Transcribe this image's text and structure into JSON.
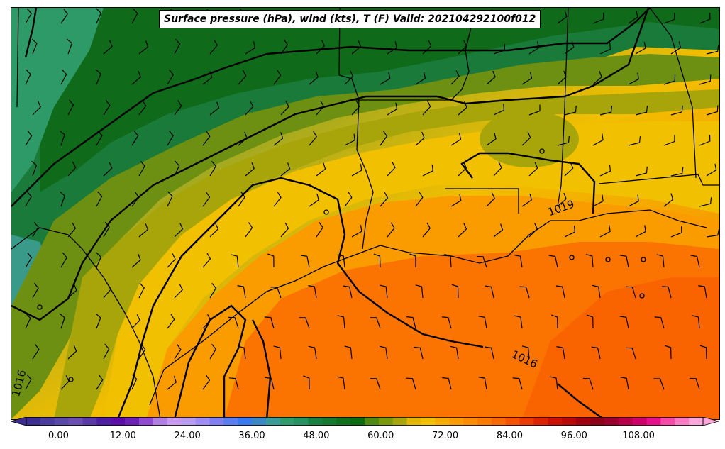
{
  "title": "Surface pressure (hPa), wind (kts), T (F) Valid: 202104292100f012",
  "colorbar": {
    "ticks": [
      "0.00",
      "12.00",
      "24.00",
      "36.00",
      "48.00",
      "60.00",
      "72.00",
      "84.00",
      "96.00",
      "108.00"
    ],
    "colors": [
      "#3b2e8f",
      "#4a3d9e",
      "#5a4aa8",
      "#6a4fb0",
      "#5a3aa6",
      "#4b1fa0",
      "#5a10a8",
      "#6a22b5",
      "#8f4ad0",
      "#b07de0",
      "#c79af0",
      "#b89cf0",
      "#9f8cf2",
      "#7f7ff0",
      "#5b7ef0",
      "#3b78ee",
      "#3c86c4",
      "#3b9a9a",
      "#2f9a6e",
      "#259060",
      "#1a8042",
      "#187a30",
      "#12701e",
      "#0c6a10",
      "#4e8a12",
      "#7a9a0a",
      "#a8a50a",
      "#e2b804",
      "#f1c000",
      "#f7ad00",
      "#fa9c00",
      "#fb8c00",
      "#fb7a00",
      "#fa6800",
      "#f65200",
      "#ea3a00",
      "#dd2300",
      "#cc1000",
      "#b80808",
      "#a00010",
      "#8d0018",
      "#9a002e",
      "#b8004a",
      "#d0006a",
      "#e8108a",
      "#f54aa8",
      "#f97cc4",
      "#fca8dc"
    ]
  },
  "contour_labels": [
    "1019",
    "1016",
    "1016"
  ],
  "chart_data": {
    "type": "heatmap",
    "title": "Surface pressure (hPa), wind (kts), T (F) Valid: 202104292100f012",
    "colorbar_range": [
      -6,
      120
    ],
    "colorbar_ticks": [
      0,
      12,
      24,
      36,
      48,
      60,
      72,
      84,
      96,
      108
    ],
    "variables": [
      "Surface pressure (hPa)",
      "wind (kts)",
      "T (F)"
    ],
    "pressure_contours_hpa": [
      1016,
      1019
    ],
    "valid_time": "202104292100f012"
  }
}
